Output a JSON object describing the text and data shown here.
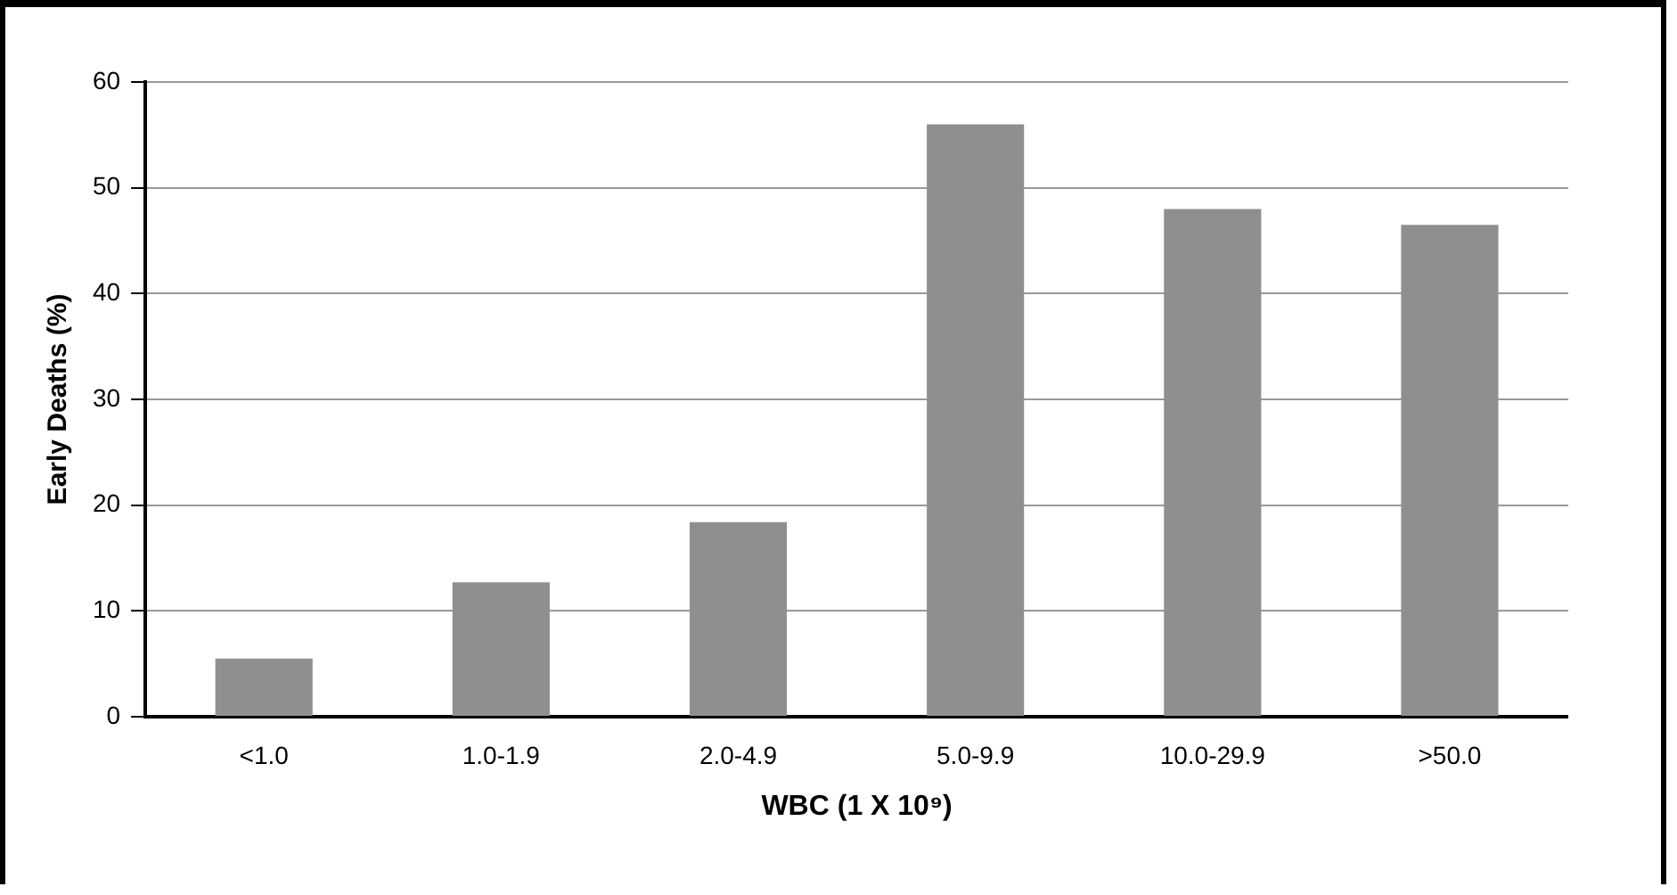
{
  "chart_data": {
    "type": "bar",
    "xlabel": "WBC (1 X 10⁹)",
    "ylabel": "Early Deaths (%)",
    "categories": [
      "<1.0",
      "1.0-1.9",
      "2.0-4.9",
      "5.0-9.9",
      "10.0-29.9",
      ">50.0"
    ],
    "values": [
      5.5,
      12.7,
      18.4,
      56,
      48,
      46.5
    ],
    "color": "#8f8f8f",
    "ylim": [
      0,
      60
    ],
    "yticks": [
      0,
      10,
      20,
      30,
      40,
      50,
      60
    ],
    "grid": "y",
    "legend": false
  }
}
